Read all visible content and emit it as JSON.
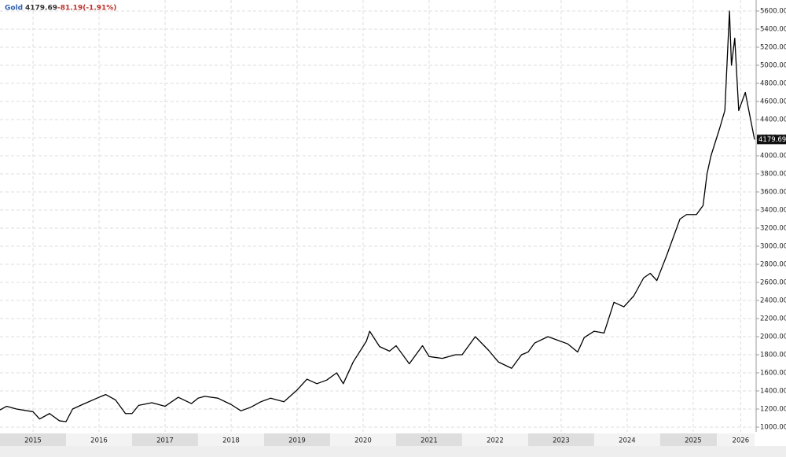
{
  "chart_data": {
    "type": "line",
    "title": "Gold",
    "last_value": 4179.69,
    "change_label": "-81.19(-1.91%)",
    "x": [
      2015.0,
      2015.1,
      2015.25,
      2015.5,
      2015.6,
      2015.75,
      2015.9,
      2016.0,
      2016.1,
      2016.25,
      2016.5,
      2016.6,
      2016.75,
      2016.9,
      2017.0,
      2017.1,
      2017.3,
      2017.5,
      2017.7,
      2017.9,
      2018.0,
      2018.1,
      2018.3,
      2018.5,
      2018.65,
      2018.8,
      2018.95,
      2019.1,
      2019.3,
      2019.5,
      2019.65,
      2019.8,
      2019.95,
      2020.1,
      2020.2,
      2020.35,
      2020.55,
      2020.6,
      2020.75,
      2020.9,
      2021.0,
      2021.2,
      2021.4,
      2021.5,
      2021.7,
      2021.9,
      2022.0,
      2022.2,
      2022.4,
      2022.55,
      2022.75,
      2022.9,
      2023.0,
      2023.1,
      2023.3,
      2023.45,
      2023.6,
      2023.75,
      2023.85,
      2024.0,
      2024.15,
      2024.3,
      2024.45,
      2024.6,
      2024.75,
      2024.85,
      2024.95,
      2025.1,
      2025.3,
      2025.4,
      2025.55,
      2025.65,
      2025.71,
      2025.77,
      2025.9,
      2025.98,
      2026.05,
      2026.08,
      2026.13,
      2026.19,
      2026.29,
      2026.37,
      2026.43
    ],
    "series": [
      {
        "name": "Gold",
        "color": "#000000",
        "values": [
          1190,
          1230,
          1200,
          1170,
          1090,
          1150,
          1070,
          1060,
          1200,
          1250,
          1330,
          1360,
          1300,
          1150,
          1150,
          1240,
          1270,
          1230,
          1330,
          1260,
          1320,
          1340,
          1320,
          1250,
          1180,
          1220,
          1280,
          1320,
          1280,
          1410,
          1530,
          1480,
          1520,
          1600,
          1480,
          1720,
          1950,
          2060,
          1890,
          1840,
          1900,
          1700,
          1900,
          1780,
          1760,
          1800,
          1800,
          2000,
          1850,
          1720,
          1650,
          1800,
          1830,
          1930,
          2000,
          1960,
          1920,
          1830,
          1990,
          2060,
          2040,
          2380,
          2330,
          2450,
          2650,
          2700,
          2620,
          2900,
          3300,
          3350,
          3350,
          3450,
          3800,
          4000,
          4300,
          4500,
          5600,
          5000,
          5300,
          4500,
          4700,
          4400,
          4179.69
        ]
      }
    ],
    "xlim": [
      2015.0,
      2026.43
    ],
    "xticks": [
      {
        "value": 2015.5,
        "label": "2015"
      },
      {
        "value": 2016.5,
        "label": "2016"
      },
      {
        "value": 2017.5,
        "label": "2017"
      },
      {
        "value": 2018.5,
        "label": "2018"
      },
      {
        "value": 2019.5,
        "label": "2019"
      },
      {
        "value": 2020.5,
        "label": "2020"
      },
      {
        "value": 2021.5,
        "label": "2021"
      },
      {
        "value": 2022.5,
        "label": "2022"
      },
      {
        "value": 2023.5,
        "label": "2023"
      },
      {
        "value": 2024.5,
        "label": "2024"
      },
      {
        "value": 2025.5,
        "label": "2025"
      },
      {
        "value": 2026.22,
        "label": "2026"
      }
    ],
    "ylim": [
      1000,
      5600
    ],
    "yticks": [
      {
        "value": 1000,
        "label": "1000.00"
      },
      {
        "value": 1200,
        "label": "1200.00"
      },
      {
        "value": 1400,
        "label": "1400.00"
      },
      {
        "value": 1600,
        "label": "1600.00"
      },
      {
        "value": 1800,
        "label": "1800.00"
      },
      {
        "value": 2000,
        "label": "2000.00"
      },
      {
        "value": 2200,
        "label": "2200.00"
      },
      {
        "value": 2400,
        "label": "2400.00"
      },
      {
        "value": 2600,
        "label": "2600.00"
      },
      {
        "value": 2800,
        "label": "2800.00"
      },
      {
        "value": 3000,
        "label": "3000.00"
      },
      {
        "value": 3200,
        "label": "3200.00"
      },
      {
        "value": 3400,
        "label": "3400.00"
      },
      {
        "value": 3600,
        "label": "3600.00"
      },
      {
        "value": 3800,
        "label": "3800.00"
      },
      {
        "value": 4000,
        "label": "4000.00"
      },
      {
        "value": 4200,
        "label": "4200.00"
      },
      {
        "value": 4400,
        "label": "4400.00"
      },
      {
        "value": 4600,
        "label": "4600.00"
      },
      {
        "value": 4800,
        "label": "4800.00"
      },
      {
        "value": 5000,
        "label": "5000.00"
      },
      {
        "value": 5200,
        "label": "5200.00"
      },
      {
        "value": 5400,
        "label": "5400.00"
      },
      {
        "value": 5600,
        "label": "5600.00"
      }
    ],
    "grid": true
  }
}
